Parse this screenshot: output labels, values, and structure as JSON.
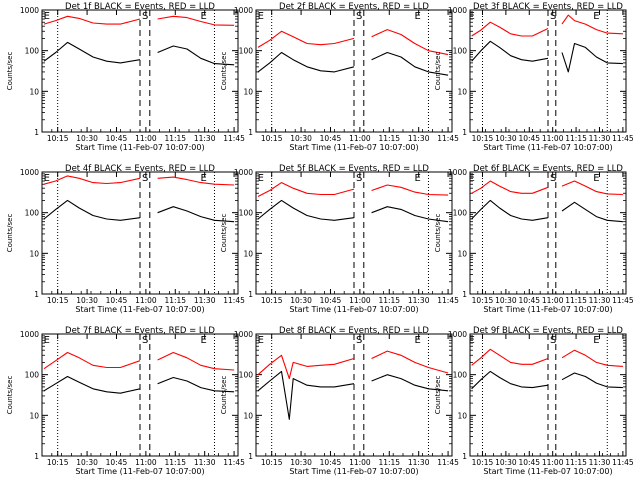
{
  "figure": {
    "common": {
      "xlabel": "Start Time (11-Feb-07 10:07:00)",
      "ylabel": "Counts/sec",
      "x_tick_labels": [
        "10:15",
        "10:30",
        "10:45",
        "11:00",
        "11:15",
        "11:30",
        "11:45"
      ],
      "y_tick_labels": [
        "1",
        "10",
        "100",
        "1000"
      ],
      "marker_labels": {
        "start": "E",
        "saa": "S",
        "end": "E"
      },
      "colors": {
        "events": "#000000",
        "lld": "#ff0000",
        "axes": "#000000"
      }
    }
  },
  "chart_data": [
    {
      "type": "line",
      "title": "Det 1f BLACK = Events, RED = LLD",
      "y_scale": "log",
      "ylim": [
        1,
        1000
      ],
      "xlim": [
        "10:07",
        "11:47"
      ],
      "x_markers_dotted": [
        "10:15",
        "11:35"
      ],
      "x_markers_dashed": [
        "10:57",
        "11:02"
      ],
      "series": [
        {
          "name": "BLACK = Events",
          "x": [
            "10:08",
            "10:14",
            "10:20",
            "10:26",
            "10:33",
            "10:40",
            "10:47",
            "10:57",
            "11:02",
            "11:06",
            "11:14",
            "11:21",
            "11:28",
            "11:35",
            "11:45"
          ],
          "values": [
            55,
            90,
            160,
            110,
            70,
            55,
            50,
            60,
            null,
            90,
            130,
            110,
            65,
            48,
            45
          ]
        },
        {
          "name": "RED = LLD",
          "x": [
            "10:08",
            "10:14",
            "10:20",
            "10:26",
            "10:33",
            "10:40",
            "10:47",
            "10:57",
            "11:02",
            "11:06",
            "11:14",
            "11:21",
            "11:28",
            "11:35",
            "11:45"
          ],
          "values": [
            450,
            550,
            700,
            620,
            480,
            450,
            450,
            600,
            null,
            600,
            700,
            650,
            520,
            430,
            420
          ]
        }
      ]
    },
    {
      "type": "line",
      "title": "Det 2f BLACK = Events, RED = LLD",
      "y_scale": "log",
      "ylim": [
        1,
        1000
      ],
      "xlim": [
        "10:07",
        "11:47"
      ],
      "x_markers_dotted": [
        "10:15",
        "11:35"
      ],
      "x_markers_dashed": [
        "10:57",
        "11:02"
      ],
      "series": [
        {
          "name": "BLACK = Events",
          "x": [
            "10:08",
            "10:14",
            "10:20",
            "10:26",
            "10:33",
            "10:40",
            "10:47",
            "10:57",
            "11:02",
            "11:06",
            "11:14",
            "11:21",
            "11:28",
            "11:35",
            "11:45"
          ],
          "values": [
            30,
            50,
            90,
            60,
            40,
            32,
            30,
            40,
            null,
            60,
            90,
            70,
            40,
            30,
            25
          ]
        },
        {
          "name": "RED = LLD",
          "x": [
            "10:08",
            "10:14",
            "10:20",
            "10:26",
            "10:33",
            "10:40",
            "10:47",
            "10:57",
            "11:02",
            "11:06",
            "11:14",
            "11:21",
            "11:28",
            "11:35",
            "11:45"
          ],
          "values": [
            120,
            180,
            300,
            220,
            150,
            140,
            150,
            200,
            null,
            220,
            330,
            250,
            150,
            100,
            80
          ]
        }
      ]
    },
    {
      "type": "line",
      "title": "Det 3f BLACK = Events, RED = LLD",
      "y_scale": "log",
      "ylim": [
        1,
        1000
      ],
      "xlim": [
        "10:07",
        "11:47"
      ],
      "x_markers_dotted": [
        "10:15",
        "11:35"
      ],
      "x_markers_dashed": [
        "10:57",
        "11:02"
      ],
      "series": [
        {
          "name": "BLACK = Events",
          "x": [
            "10:08",
            "10:14",
            "10:20",
            "10:26",
            "10:33",
            "10:40",
            "10:47",
            "10:57",
            "11:02",
            "11:06",
            "11:10",
            "11:14",
            "11:21",
            "11:28",
            "11:35",
            "11:45"
          ],
          "values": [
            55,
            100,
            170,
            120,
            75,
            60,
            55,
            65,
            null,
            90,
            30,
            150,
            120,
            70,
            50,
            48
          ]
        },
        {
          "name": "RED = LLD",
          "x": [
            "10:08",
            "10:14",
            "10:20",
            "10:26",
            "10:33",
            "10:40",
            "10:47",
            "10:57",
            "11:02",
            "11:06",
            "11:10",
            "11:14",
            "11:21",
            "11:28",
            "11:35",
            "11:45"
          ],
          "values": [
            230,
            320,
            500,
            380,
            260,
            230,
            230,
            350,
            null,
            450,
            750,
            550,
            450,
            330,
            270,
            260
          ]
        }
      ]
    },
    {
      "type": "line",
      "title": "Det 4f BLACK = Events, RED = LLD",
      "y_scale": "log",
      "ylim": [
        1,
        1000
      ],
      "xlim": [
        "10:07",
        "11:47"
      ],
      "x_markers_dotted": [
        "10:15",
        "11:35"
      ],
      "x_markers_dashed": [
        "10:57",
        "11:02"
      ],
      "series": [
        {
          "name": "BLACK = Events",
          "x": [
            "10:08",
            "10:14",
            "10:20",
            "10:26",
            "10:33",
            "10:40",
            "10:47",
            "10:57",
            "11:02",
            "11:06",
            "11:14",
            "11:21",
            "11:28",
            "11:35",
            "11:45"
          ],
          "values": [
            70,
            120,
            200,
            130,
            85,
            70,
            65,
            75,
            null,
            100,
            140,
            110,
            80,
            65,
            60
          ]
        },
        {
          "name": "RED = LLD",
          "x": [
            "10:08",
            "10:14",
            "10:20",
            "10:26",
            "10:33",
            "10:40",
            "10:47",
            "10:57",
            "11:02",
            "11:06",
            "11:14",
            "11:21",
            "11:28",
            "11:35",
            "11:45"
          ],
          "values": [
            500,
            600,
            800,
            700,
            550,
            520,
            550,
            700,
            null,
            700,
            750,
            650,
            550,
            500,
            480
          ]
        }
      ]
    },
    {
      "type": "line",
      "title": "Det 5f BLACK = Events, RED = LLD",
      "y_scale": "log",
      "ylim": [
        1,
        1000
      ],
      "xlim": [
        "10:07",
        "11:47"
      ],
      "x_markers_dotted": [
        "10:15",
        "11:35"
      ],
      "x_markers_dashed": [
        "10:57",
        "11:02"
      ],
      "series": [
        {
          "name": "BLACK = Events",
          "x": [
            "10:08",
            "10:14",
            "10:20",
            "10:26",
            "10:33",
            "10:40",
            "10:47",
            "10:57",
            "11:02",
            "11:06",
            "11:14",
            "11:21",
            "11:28",
            "11:35",
            "11:45"
          ],
          "values": [
            70,
            120,
            200,
            130,
            85,
            70,
            65,
            75,
            null,
            100,
            140,
            120,
            85,
            70,
            60
          ]
        },
        {
          "name": "RED = LLD",
          "x": [
            "10:08",
            "10:14",
            "10:20",
            "10:26",
            "10:33",
            "10:40",
            "10:47",
            "10:57",
            "11:02",
            "11:06",
            "11:14",
            "11:21",
            "11:28",
            "11:35",
            "11:45"
          ],
          "values": [
            250,
            350,
            550,
            400,
            300,
            280,
            280,
            380,
            null,
            350,
            480,
            420,
            320,
            280,
            270
          ]
        }
      ]
    },
    {
      "type": "line",
      "title": "Det 6f BLACK = Events, RED = LLD",
      "y_scale": "log",
      "ylim": [
        1,
        1000
      ],
      "xlim": [
        "10:07",
        "11:47"
      ],
      "x_markers_dotted": [
        "10:15",
        "11:35"
      ],
      "x_markers_dashed": [
        "10:57",
        "11:02"
      ],
      "series": [
        {
          "name": "BLACK = Events",
          "x": [
            "10:08",
            "10:14",
            "10:20",
            "10:26",
            "10:33",
            "10:40",
            "10:47",
            "10:57",
            "11:02",
            "11:06",
            "11:14",
            "11:21",
            "11:28",
            "11:35",
            "11:45"
          ],
          "values": [
            70,
            120,
            200,
            130,
            85,
            70,
            65,
            75,
            null,
            110,
            180,
            120,
            80,
            65,
            60
          ]
        },
        {
          "name": "RED = LLD",
          "x": [
            "10:08",
            "10:14",
            "10:20",
            "10:26",
            "10:33",
            "10:40",
            "10:47",
            "10:57",
            "11:02",
            "11:06",
            "11:14",
            "11:21",
            "11:28",
            "11:35",
            "11:45"
          ],
          "values": [
            300,
            400,
            600,
            450,
            330,
            300,
            300,
            420,
            null,
            450,
            600,
            450,
            330,
            290,
            280
          ]
        }
      ]
    },
    {
      "type": "line",
      "title": "Det 7f BLACK = Events, RED = LLD",
      "y_scale": "log",
      "ylim": [
        1,
        1000
      ],
      "xlim": [
        "10:07",
        "11:47"
      ],
      "x_markers_dotted": [
        "10:15",
        "11:35"
      ],
      "x_markers_dashed": [
        "10:57",
        "11:02"
      ],
      "series": [
        {
          "name": "BLACK = Events",
          "x": [
            "10:08",
            "10:14",
            "10:20",
            "10:26",
            "10:33",
            "10:40",
            "10:47",
            "10:57",
            "11:02",
            "11:06",
            "11:14",
            "11:21",
            "11:28",
            "11:35",
            "11:45"
          ],
          "values": [
            40,
            60,
            90,
            65,
            45,
            38,
            35,
            45,
            null,
            60,
            85,
            70,
            48,
            40,
            38
          ]
        },
        {
          "name": "RED = LLD",
          "x": [
            "10:08",
            "10:14",
            "10:20",
            "10:26",
            "10:33",
            "10:40",
            "10:47",
            "10:57",
            "11:02",
            "11:06",
            "11:14",
            "11:21",
            "11:28",
            "11:35",
            "11:45"
          ],
          "values": [
            140,
            220,
            350,
            260,
            170,
            150,
            150,
            220,
            null,
            230,
            350,
            260,
            170,
            140,
            130
          ]
        }
      ]
    },
    {
      "type": "line",
      "title": "Det 8f BLACK = Events, RED = LLD",
      "y_scale": "log",
      "ylim": [
        1,
        1000
      ],
      "xlim": [
        "10:07",
        "11:47"
      ],
      "x_markers_dotted": [
        "10:15",
        "11:35"
      ],
      "x_markers_dashed": [
        "10:57",
        "11:02"
      ],
      "series": [
        {
          "name": "BLACK = Events",
          "x": [
            "10:08",
            "10:14",
            "10:20",
            "10:24",
            "10:26",
            "10:33",
            "10:40",
            "10:47",
            "10:57",
            "11:02",
            "11:06",
            "11:14",
            "11:21",
            "11:28",
            "11:35",
            "11:45"
          ],
          "values": [
            40,
            70,
            120,
            8,
            80,
            55,
            50,
            50,
            60,
            null,
            70,
            100,
            80,
            55,
            45,
            40
          ]
        },
        {
          "name": "RED = LLD",
          "x": [
            "10:08",
            "10:14",
            "10:20",
            "10:24",
            "10:26",
            "10:33",
            "10:40",
            "10:47",
            "10:57",
            "11:02",
            "11:06",
            "11:14",
            "11:21",
            "11:28",
            "11:35",
            "11:45"
          ],
          "values": [
            100,
            180,
            300,
            80,
            200,
            160,
            170,
            180,
            250,
            null,
            250,
            380,
            300,
            200,
            150,
            110
          ]
        }
      ]
    },
    {
      "type": "line",
      "title": "Det 9f BLACK = Events, RED = LLD",
      "y_scale": "log",
      "ylim": [
        1,
        1000
      ],
      "xlim": [
        "10:07",
        "11:47"
      ],
      "x_markers_dotted": [
        "10:15",
        "11:35"
      ],
      "x_markers_dashed": [
        "10:57",
        "11:02"
      ],
      "series": [
        {
          "name": "BLACK = Events",
          "x": [
            "10:08",
            "10:14",
            "10:20",
            "10:26",
            "10:33",
            "10:40",
            "10:47",
            "10:57",
            "11:02",
            "11:06",
            "11:14",
            "11:21",
            "11:28",
            "11:35",
            "11:45"
          ],
          "values": [
            45,
            75,
            120,
            85,
            60,
            50,
            48,
            55,
            null,
            75,
            110,
            90,
            62,
            50,
            48
          ]
        },
        {
          "name": "RED = LLD",
          "x": [
            "10:08",
            "10:14",
            "10:20",
            "10:26",
            "10:33",
            "10:40",
            "10:47",
            "10:57",
            "11:02",
            "11:06",
            "11:14",
            "11:21",
            "11:28",
            "11:35",
            "11:45"
          ],
          "values": [
            170,
            260,
            420,
            300,
            200,
            180,
            180,
            250,
            null,
            260,
            400,
            300,
            200,
            170,
            160
          ]
        }
      ]
    }
  ]
}
